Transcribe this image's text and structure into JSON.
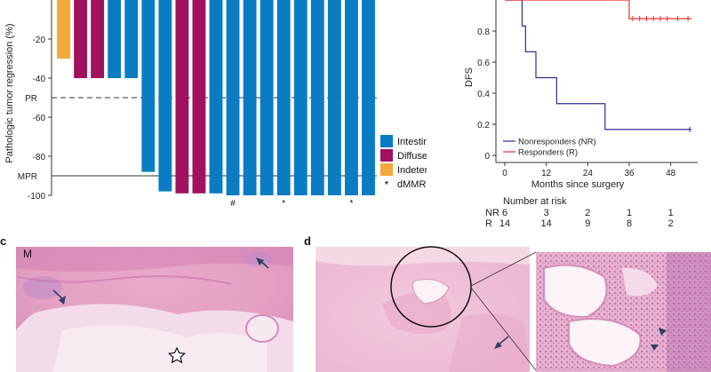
{
  "chart_data": [
    {
      "type": "bar",
      "ylabel": "Pathologic tumor regression (%)",
      "ylim": [
        -100,
        0
      ],
      "yticks": [
        -20,
        -40,
        -60,
        -80,
        -100
      ],
      "thresholds": [
        {
          "label": "PR",
          "value": -50,
          "style": "dashed"
        },
        {
          "label": "MPR",
          "value": -90,
          "style": "solid"
        }
      ],
      "legend": [
        {
          "name": "Intestinal",
          "color": "#0a7cc4"
        },
        {
          "name": "Diffuse/mixed",
          "color": "#a0125e"
        },
        {
          "name": "Indeterminate",
          "color": "#f4a93a"
        },
        {
          "name": "dMMR",
          "symbol": "*"
        }
      ],
      "bars": [
        {
          "value": -30,
          "group": "Indeterminate",
          "mark": ""
        },
        {
          "value": -40,
          "group": "Diffuse/mixed",
          "mark": ""
        },
        {
          "value": -40,
          "group": "Diffuse/mixed",
          "mark": ""
        },
        {
          "value": -40,
          "group": "Intestinal",
          "mark": ""
        },
        {
          "value": -40,
          "group": "Intestinal",
          "mark": ""
        },
        {
          "value": -88,
          "group": "Intestinal",
          "mark": ""
        },
        {
          "value": -98,
          "group": "Intestinal",
          "mark": ""
        },
        {
          "value": -99,
          "group": "Diffuse/mixed",
          "mark": ""
        },
        {
          "value": -99,
          "group": "Diffuse/mixed",
          "mark": ""
        },
        {
          "value": -99,
          "group": "Intestinal",
          "mark": ""
        },
        {
          "value": -100,
          "group": "Intestinal",
          "mark": "#"
        },
        {
          "value": -100,
          "group": "Intestinal",
          "mark": ""
        },
        {
          "value": -100,
          "group": "Intestinal",
          "mark": ""
        },
        {
          "value": -100,
          "group": "Intestinal",
          "mark": "*"
        },
        {
          "value": -100,
          "group": "Intestinal",
          "mark": ""
        },
        {
          "value": -100,
          "group": "Intestinal",
          "mark": ""
        },
        {
          "value": -100,
          "group": "Intestinal",
          "mark": ""
        },
        {
          "value": -100,
          "group": "Intestinal",
          "mark": "*"
        },
        {
          "value": -100,
          "group": "Intestinal",
          "mark": ""
        }
      ]
    },
    {
      "type": "line",
      "xlabel": "Months since surgery",
      "ylabel": "DFS",
      "xlim": [
        0,
        54
      ],
      "ylim": [
        0,
        1
      ],
      "xticks": [
        0,
        12,
        24,
        36,
        48
      ],
      "yticks": [
        0,
        0.2,
        0.4,
        0.6,
        0.8
      ],
      "series": [
        {
          "name": "Nonresponders (NR)",
          "color": "#2b2f8f",
          "x": [
            0,
            5,
            6,
            9,
            15,
            29,
            54
          ],
          "y": [
            1,
            0.833,
            0.667,
            0.5,
            0.333,
            0.167,
            0.167
          ],
          "censor_x": [
            53.5
          ]
        },
        {
          "name": "Responders (R)",
          "color": "#e8302a",
          "x": [
            0,
            36,
            54
          ],
          "y": [
            1,
            0.88,
            0.88
          ],
          "censor_x": [
            37,
            39,
            41,
            43,
            45,
            47,
            50,
            53
          ]
        }
      ]
    }
  ],
  "risk_table": {
    "title": "Number at risk",
    "rows": [
      {
        "label": "NR",
        "values": [
          "6",
          "3",
          "2",
          "1",
          "1"
        ]
      },
      {
        "label": "R",
        "values": [
          "14",
          "14",
          "9",
          "8",
          "2"
        ]
      }
    ]
  },
  "panels": [
    {
      "letter": "c",
      "labels": [
        {
          "text": "M"
        }
      ]
    },
    {
      "letter": "d"
    }
  ],
  "colors": {
    "tissue_pink": "#ebb8d2",
    "tissue_pale": "#f6e3ee",
    "tissue_dark": "#c87ab2",
    "lumen_white": "#fbf5f9"
  }
}
